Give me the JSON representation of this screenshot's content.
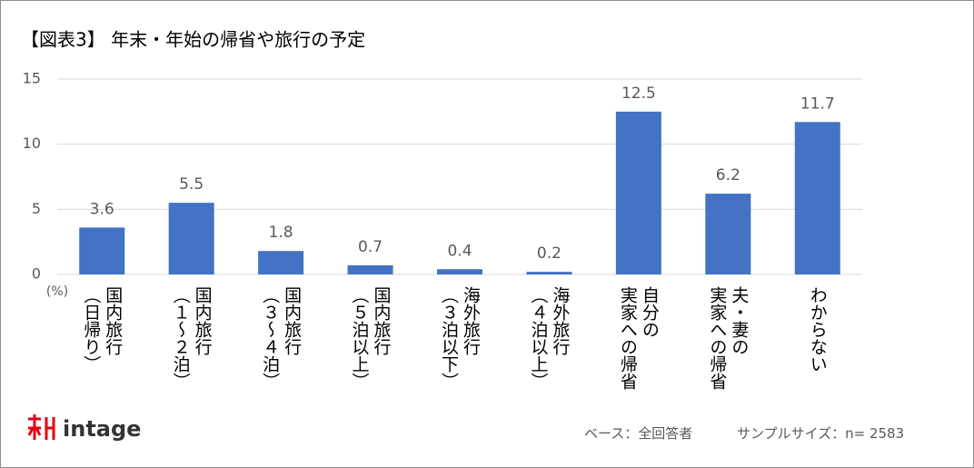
{
  "chart_data": {
    "type": "bar",
    "title": "【図表3】 年末・年始の帰省や旅行の予定",
    "y_unit": "(%)",
    "categories": [
      "国内旅行\n（日帰り）",
      "国内旅行\n（１～２泊）",
      "国内旅行\n（３～４泊）",
      "国内旅行\n（５泊以上）",
      "海外旅行\n（３泊以下）",
      "海外旅行\n（４泊以上）",
      "自分の\n実家への帰省",
      "夫・妻の\n実家への帰省",
      "わからない"
    ],
    "values": [
      3.6,
      5.5,
      1.8,
      0.7,
      0.4,
      0.2,
      12.5,
      6.2,
      11.7
    ],
    "color": "#4472c4",
    "ylim": [
      0,
      15
    ],
    "yticks": [
      0,
      5,
      10,
      15
    ],
    "grid": true,
    "base": "ベース：全回答者",
    "sample": "サンプルサイズ：n= 2583",
    "logo": "intage"
  }
}
